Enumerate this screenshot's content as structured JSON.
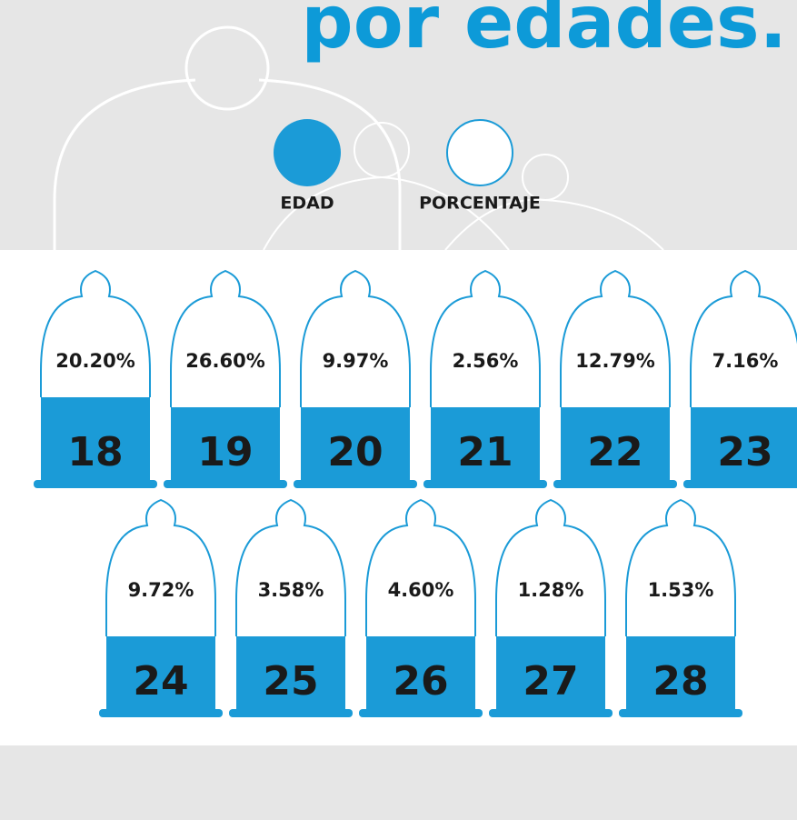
{
  "title": "por edades.",
  "legend": {
    "edad": "EDAD",
    "porcentaje": "PORCENTAJE"
  },
  "items": [
    {
      "age": "18",
      "percent": "20.20%"
    },
    {
      "age": "19",
      "percent": "26.60%"
    },
    {
      "age": "20",
      "percent": "9.97%"
    },
    {
      "age": "21",
      "percent": "2.56%"
    },
    {
      "age": "22",
      "percent": "12.79%"
    },
    {
      "age": "23",
      "percent": "7.16%"
    },
    {
      "age": "24",
      "percent": "9.72%"
    },
    {
      "age": "25",
      "percent": "3.58%"
    },
    {
      "age": "26",
      "percent": "4.60%"
    },
    {
      "age": "27",
      "percent": "1.28%"
    },
    {
      "age": "28",
      "percent": "1.53%"
    }
  ]
}
